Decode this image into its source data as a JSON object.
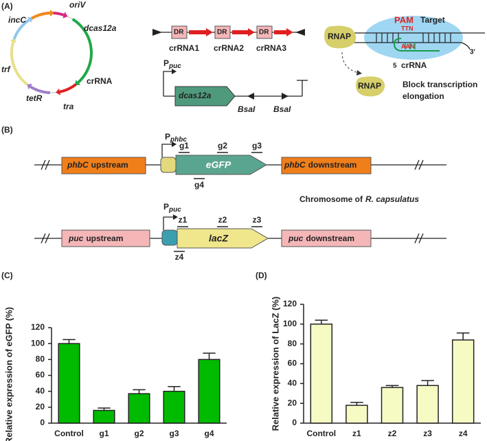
{
  "panels": [
    "(A)",
    "(B)",
    "(C)",
    "(D)"
  ],
  "plasmid_labels": [
    "oriV",
    "incC",
    "dcas12a",
    "trf",
    "crRNA",
    "tetR",
    "tra"
  ],
  "array": {
    "dr": [
      "DR",
      "DR",
      "DR"
    ],
    "spacers": [
      "crRNA1",
      "crRNA2",
      "crRNA3"
    ]
  },
  "construct": {
    "promoter": {
      "main": "P",
      "sub": "puc"
    },
    "gene": "dcas12a",
    "sites": [
      "BsaI",
      "BsaI"
    ]
  },
  "mechanism": {
    "rnap": "RNAP",
    "pam": "PAM",
    "target": "Target",
    "ttn": "TTN",
    "aan": "AAN",
    "three_prime": "3'",
    "five_prime": "5",
    "crrna": "crRNA",
    "rnap_released": "RNAP",
    "block": "Block transcription",
    "elongation": "elongation"
  },
  "egfp_locus": {
    "upstream": {
      "gene": "phbC",
      "label": "upstream"
    },
    "promoter": {
      "main": "P",
      "sub": "phbc"
    },
    "gene": "eGFP",
    "downstream": {
      "gene": "phbC",
      "label": "downstream"
    },
    "guides": [
      "g1",
      "g2",
      "g3",
      "g4"
    ]
  },
  "chromosome": {
    "prefix": "Chromosome of",
    "organism": "R. capsulatus"
  },
  "lacz_locus": {
    "upstream": {
      "gene": "puc",
      "label": "upstream"
    },
    "promoter": {
      "main": "P",
      "sub": "puc"
    },
    "gene": "lacZ",
    "downstream": {
      "gene": "puc",
      "label": "downstream"
    },
    "guides": [
      "z1",
      "z2",
      "z3",
      "z4"
    ]
  },
  "chart_data": [
    {
      "type": "bar",
      "y_label": "Relative expression of eGFP (%)",
      "categories": [
        "Control",
        "g1",
        "g2",
        "g3",
        "g4"
      ],
      "values": [
        100,
        16,
        37,
        40,
        80
      ],
      "errors": [
        5,
        3,
        5,
        6,
        8
      ],
      "color": "#00bb00",
      "ylim": [
        0,
        120
      ],
      "yticks": [
        0,
        20,
        40,
        60,
        80,
        100,
        120
      ]
    },
    {
      "type": "bar",
      "y_label": "Relative expression of LacZ (%)",
      "categories": [
        "Control",
        "z1",
        "z2",
        "z3",
        "z4"
      ],
      "values": [
        100,
        18,
        36,
        38,
        84
      ],
      "errors": [
        4,
        3,
        2,
        5,
        7
      ],
      "color": "#f6fbc4",
      "ylim": [
        0,
        120
      ],
      "yticks": [
        0,
        20,
        40,
        60,
        80,
        100,
        120
      ]
    }
  ]
}
